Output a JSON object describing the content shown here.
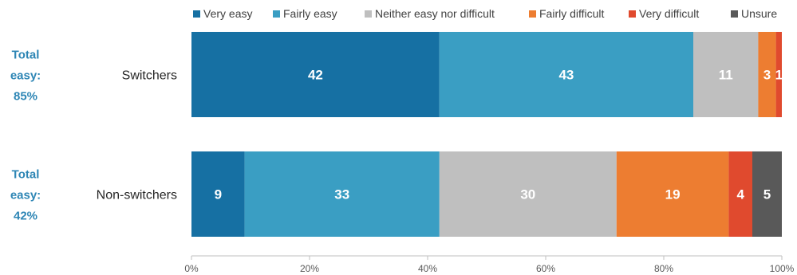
{
  "chart_data": {
    "type": "bar",
    "orientation": "horizontal",
    "stacked": true,
    "categories": [
      "Switchers",
      "Non-switchers"
    ],
    "series": [
      {
        "name": "Very easy",
        "color": "#1670a3",
        "values": [
          42,
          9
        ]
      },
      {
        "name": "Fairly easy",
        "color": "#3a9ec3",
        "values": [
          43,
          33
        ]
      },
      {
        "name": "Neither easy nor difficult",
        "color": "#bfbfbf",
        "values": [
          11,
          30
        ]
      },
      {
        "name": "Fairly difficult",
        "color": "#ed7d31",
        "values": [
          3,
          19
        ]
      },
      {
        "name": "Very difficult",
        "color": "#e04a2e",
        "values": [
          1,
          4
        ]
      },
      {
        "name": "Unsure",
        "color": "#595959",
        "values": [
          0,
          5
        ]
      }
    ],
    "annotations": [
      {
        "category": "Switchers",
        "lines": [
          "Total",
          "easy:",
          "85%"
        ]
      },
      {
        "category": "Non-switchers",
        "lines": [
          "Total",
          "easy:",
          "42%"
        ]
      }
    ],
    "xlim": [
      0,
      100
    ],
    "x_ticks": [
      "0%",
      "20%",
      "40%",
      "60%",
      "80%",
      "100%"
    ],
    "legend_position": "top",
    "grid": false
  }
}
